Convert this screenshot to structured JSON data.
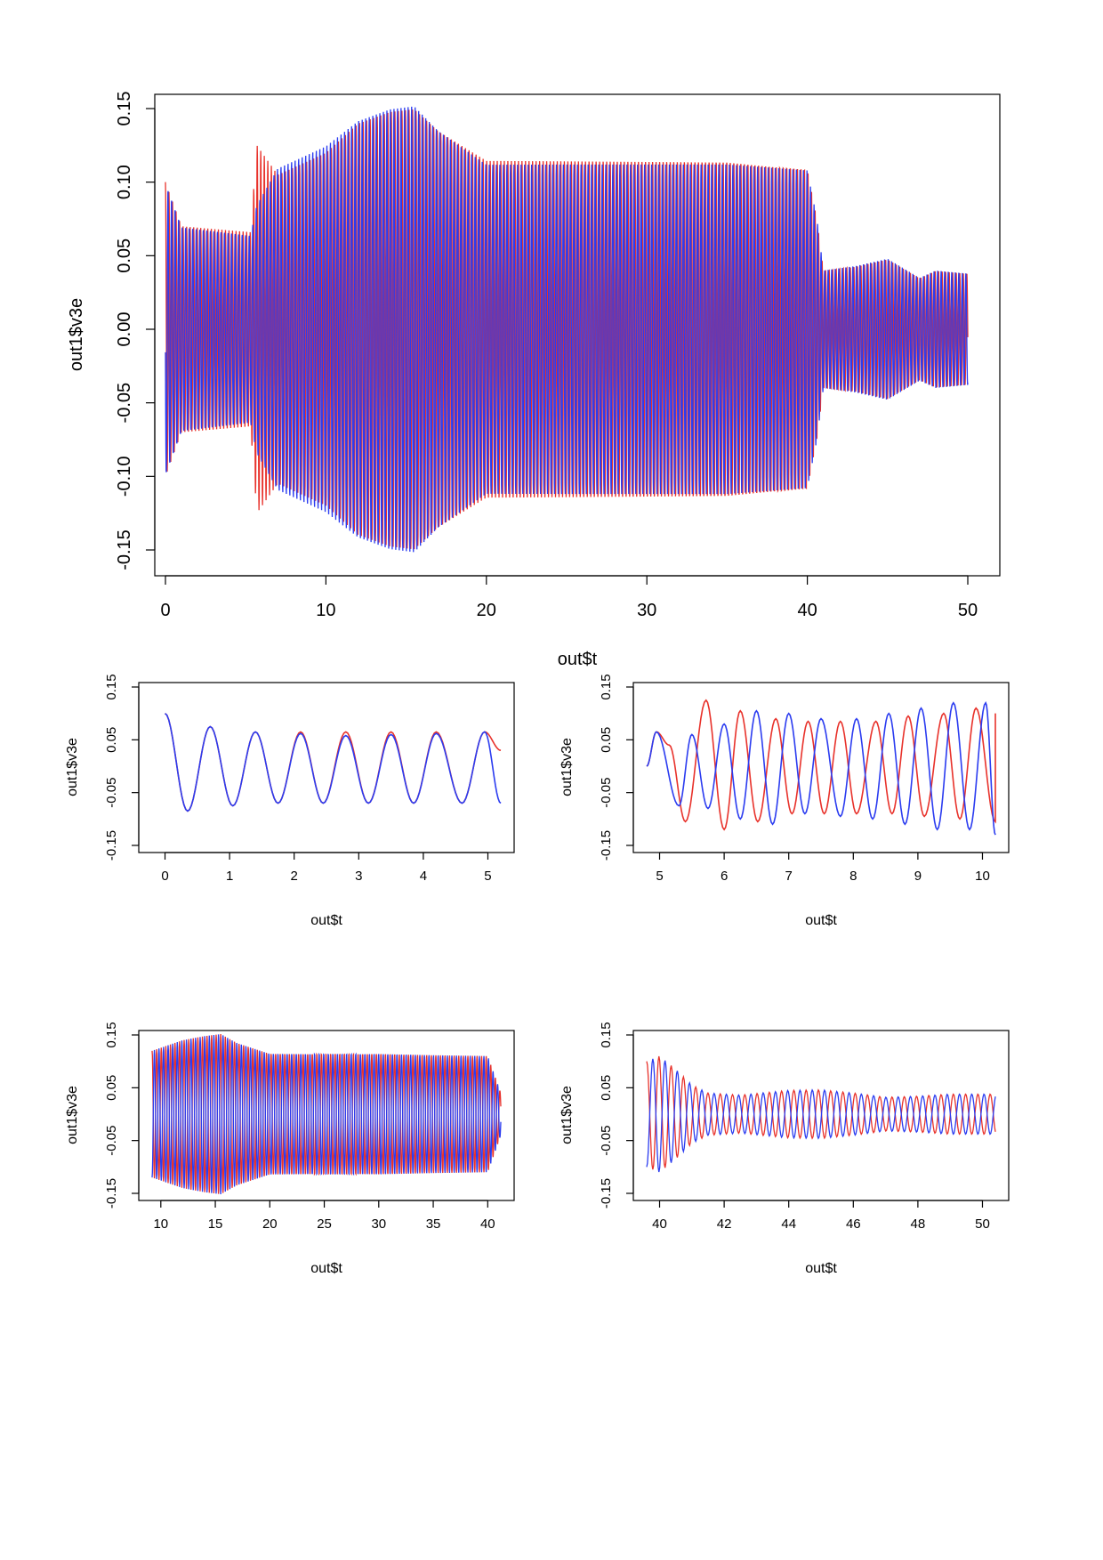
{
  "colors": {
    "series_a": "#e8322b",
    "series_b": "#2b3cf0",
    "axis": "#000000",
    "background": "#ffffff"
  },
  "chart_data": [
    {
      "id": "main",
      "type": "line",
      "xlabel": "out$t",
      "ylabel": "out1$v3e",
      "xlim": [
        0,
        50
      ],
      "ylim": [
        -0.15,
        0.15
      ],
      "x_ticks": [
        "0",
        "10",
        "20",
        "30",
        "40",
        "50"
      ],
      "y_ticks": [
        "-0.15",
        "-0.10",
        "-0.05",
        "0.00",
        "0.05",
        "0.10",
        "0.15"
      ],
      "grid": false,
      "legend": "none",
      "series": [
        {
          "color": "#e8322b",
          "start": 0.1,
          "envelope_t": [
            0,
            1,
            5.3,
            5.7,
            7,
            10,
            12,
            14,
            15.5,
            17,
            20,
            25,
            30,
            35,
            40,
            40.6,
            41,
            43,
            45,
            47,
            48,
            50
          ],
          "envelope_a": [
            0.1,
            0.07,
            0.066,
            0.125,
            0.105,
            0.12,
            0.14,
            0.148,
            0.15,
            0.135,
            0.115,
            0.115,
            0.115,
            0.115,
            0.11,
            0.075,
            0.04,
            0.043,
            0.048,
            0.035,
            0.04,
            0.038
          ]
        },
        {
          "color": "#2b3cf0",
          "start": 0.1,
          "envelope_t": [
            0,
            1,
            5.3,
            5.7,
            7,
            10,
            12,
            14,
            15.5,
            17,
            20,
            25,
            30,
            35,
            40,
            40.6,
            41,
            43,
            45,
            47,
            48,
            50
          ],
          "envelope_a": [
            0.1,
            0.07,
            0.064,
            0.085,
            0.11,
            0.125,
            0.142,
            0.15,
            0.152,
            0.135,
            0.112,
            0.112,
            0.112,
            0.112,
            0.108,
            0.075,
            0.04,
            0.043,
            0.048,
            0.035,
            0.04,
            0.038
          ]
        }
      ]
    },
    {
      "id": "zoom-0-5",
      "type": "line",
      "xlabel": "out$t",
      "ylabel": "out1$v3e",
      "xlim": [
        -0.2,
        5.2
      ],
      "ylim": [
        -0.15,
        0.15
      ],
      "x_ticks": [
        "0",
        "1",
        "2",
        "3",
        "4",
        "5"
      ],
      "y_ticks": [
        "-0.15",
        "-0.05",
        "0.05",
        "0.15"
      ],
      "grid": false,
      "legend": "none",
      "peaks_red": [
        [
          0.0,
          0.1
        ],
        [
          0.35,
          -0.085
        ],
        [
          0.7,
          0.075
        ],
        [
          1.05,
          -0.075
        ],
        [
          1.4,
          0.065
        ],
        [
          1.75,
          -0.07
        ],
        [
          2.1,
          0.065
        ],
        [
          2.45,
          -0.07
        ],
        [
          2.8,
          0.065
        ],
        [
          3.15,
          -0.07
        ],
        [
          3.5,
          0.065
        ],
        [
          3.85,
          -0.07
        ],
        [
          4.2,
          0.065
        ],
        [
          4.6,
          -0.07
        ],
        [
          4.95,
          0.065
        ],
        [
          5.2,
          0.03
        ]
      ],
      "peaks_blue": [
        [
          0.0,
          0.1
        ],
        [
          0.35,
          -0.085
        ],
        [
          0.7,
          0.075
        ],
        [
          1.05,
          -0.075
        ],
        [
          1.4,
          0.065
        ],
        [
          1.75,
          -0.07
        ],
        [
          2.1,
          0.062
        ],
        [
          2.45,
          -0.07
        ],
        [
          2.8,
          0.058
        ],
        [
          3.15,
          -0.07
        ],
        [
          3.5,
          0.06
        ],
        [
          3.85,
          -0.07
        ],
        [
          4.2,
          0.062
        ],
        [
          4.6,
          -0.07
        ],
        [
          4.95,
          0.065
        ],
        [
          5.2,
          -0.07
        ]
      ]
    },
    {
      "id": "zoom-5-10",
      "type": "line",
      "xlabel": "out$t",
      "ylabel": "out1$v3e",
      "xlim": [
        4.8,
        10.2
      ],
      "ylim": [
        -0.15,
        0.15
      ],
      "x_ticks": [
        "5",
        "6",
        "7",
        "8",
        "9",
        "10"
      ],
      "y_ticks": [
        "-0.15",
        "-0.05",
        "0.05",
        "0.15"
      ],
      "grid": false,
      "legend": "none",
      "peaks_red": [
        [
          4.8,
          0.0
        ],
        [
          4.95,
          0.065
        ],
        [
          5.15,
          0.04
        ],
        [
          5.4,
          -0.105
        ],
        [
          5.72,
          0.125
        ],
        [
          6.0,
          -0.12
        ],
        [
          6.25,
          0.105
        ],
        [
          6.52,
          -0.105
        ],
        [
          6.8,
          0.09
        ],
        [
          7.05,
          -0.09
        ],
        [
          7.3,
          0.085
        ],
        [
          7.55,
          -0.09
        ],
        [
          7.8,
          0.085
        ],
        [
          8.05,
          -0.09
        ],
        [
          8.35,
          0.085
        ],
        [
          8.6,
          -0.09
        ],
        [
          8.85,
          0.095
        ],
        [
          9.1,
          -0.095
        ],
        [
          9.4,
          0.1
        ],
        [
          9.65,
          -0.1
        ],
        [
          9.9,
          0.11
        ],
        [
          10.2,
          -0.105
        ],
        [
          10.2,
          0.1
        ]
      ],
      "peaks_blue": [
        [
          4.8,
          0.0
        ],
        [
          4.95,
          0.065
        ],
        [
          5.3,
          -0.075
        ],
        [
          5.5,
          0.06
        ],
        [
          5.75,
          -0.08
        ],
        [
          6.0,
          0.08
        ],
        [
          6.25,
          -0.1
        ],
        [
          6.5,
          0.105
        ],
        [
          6.75,
          -0.11
        ],
        [
          7.0,
          0.1
        ],
        [
          7.25,
          -0.09
        ],
        [
          7.5,
          0.09
        ],
        [
          7.8,
          -0.095
        ],
        [
          8.05,
          0.09
        ],
        [
          8.3,
          -0.1
        ],
        [
          8.55,
          0.1
        ],
        [
          8.8,
          -0.11
        ],
        [
          9.05,
          0.11
        ],
        [
          9.3,
          -0.12
        ],
        [
          9.55,
          0.12
        ],
        [
          9.8,
          -0.12
        ],
        [
          10.05,
          0.12
        ],
        [
          10.2,
          -0.13
        ]
      ]
    },
    {
      "id": "zoom-10-40",
      "type": "line",
      "xlabel": "out$t",
      "ylabel": "out1$v3e",
      "xlim": [
        9.2,
        41.2
      ],
      "ylim": [
        -0.15,
        0.15
      ],
      "x_ticks": [
        "10",
        "15",
        "20",
        "25",
        "30",
        "35",
        "40"
      ],
      "y_ticks": [
        "-0.15",
        "-0.05",
        "0.05",
        "0.15"
      ],
      "grid": false,
      "legend": "none",
      "envelope_t": [
        9.2,
        12,
        14,
        15.5,
        17,
        20,
        25,
        30,
        35,
        40,
        40.6,
        41.2
      ],
      "envelope_a": [
        0.12,
        0.14,
        0.148,
        0.152,
        0.135,
        0.115,
        0.115,
        0.115,
        0.112,
        0.11,
        0.075,
        0.04
      ]
    },
    {
      "id": "zoom-40-50",
      "type": "line",
      "xlabel": "out$t",
      "ylabel": "out1$v3e",
      "xlim": [
        39.6,
        50.4
      ],
      "ylim": [
        -0.15,
        0.15
      ],
      "x_ticks": [
        "40",
        "42",
        "44",
        "46",
        "48",
        "50"
      ],
      "y_ticks": [
        "-0.15",
        "-0.05",
        "0.05",
        "0.15"
      ],
      "grid": false,
      "legend": "none",
      "envelope_t": [
        39.6,
        40.0,
        40.5,
        41.0,
        41.5,
        42.5,
        44,
        45,
        46,
        47,
        48,
        49,
        50
      ],
      "envelope_a": [
        0.1,
        0.11,
        0.085,
        0.055,
        0.04,
        0.036,
        0.045,
        0.046,
        0.04,
        0.032,
        0.034,
        0.038,
        0.038
      ]
    }
  ]
}
